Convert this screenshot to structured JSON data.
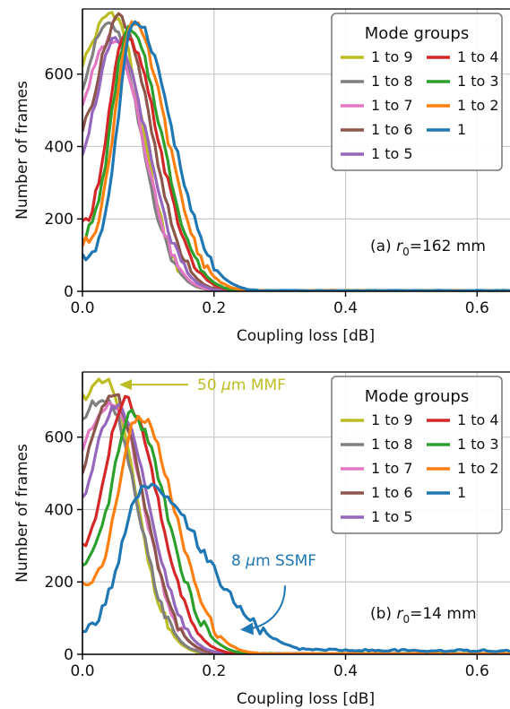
{
  "colors": {
    "1 to 9": "#bcbd22",
    "1 to 8": "#7f7f7f",
    "1 to 7": "#e377c2",
    "1 to 6": "#8c564b",
    "1 to 5": "#9467bd",
    "1 to 4": "#d62728",
    "1 to 3": "#2ca02c",
    "1 to 2": "#ff7f0e",
    "1": "#1f77b4"
  },
  "legend_order": [
    "1 to 9",
    "1 to 4",
    "1 to 8",
    "1 to 3",
    "1 to 7",
    "1 to 2",
    "1 to 6",
    "1",
    "1 to 5"
  ],
  "chart_data": [
    {
      "type": "line",
      "panel": "a",
      "xlabel": "Coupling loss [dB]",
      "ylabel": "Number of frames",
      "xlim": [
        0,
        0.65
      ],
      "ylim": [
        0,
        780
      ],
      "xticks": [
        "0.0",
        "0.2",
        "0.4",
        "0.6"
      ],
      "xtick_values": [
        0,
        0.2,
        0.4,
        0.6
      ],
      "yticks": [
        "0",
        "200",
        "400",
        "600"
      ],
      "ytick_values": [
        0,
        200,
        400,
        600
      ],
      "grid": true,
      "legend_title": "Mode groups",
      "legend_position": "top-right",
      "annotation_prefix": "(a) ",
      "annotation_symbol": "r",
      "annotation_sub": "0",
      "annotation_value": "=162 mm",
      "series": [
        {
          "name": "1 to 9",
          "peak_x": 0.045,
          "peak_y": 770,
          "y0": 630,
          "sl": 0.03,
          "sr": 0.045
        },
        {
          "name": "1 to 8",
          "peak_x": 0.04,
          "peak_y": 740,
          "y0": 570,
          "sl": 0.03,
          "sr": 0.047
        },
        {
          "name": "1 to 7",
          "peak_x": 0.045,
          "peak_y": 700,
          "y0": 520,
          "sl": 0.032,
          "sr": 0.047
        },
        {
          "name": "1 to 6",
          "peak_x": 0.055,
          "peak_y": 760,
          "y0": 450,
          "sl": 0.028,
          "sr": 0.048
        },
        {
          "name": "1 to 5",
          "peak_x": 0.05,
          "peak_y": 690,
          "y0": 390,
          "sl": 0.028,
          "sr": 0.048
        },
        {
          "name": "1 to 4",
          "peak_x": 0.065,
          "peak_y": 700,
          "y0": 180,
          "sl": 0.025,
          "sr": 0.05
        },
        {
          "name": "1 to 3",
          "peak_x": 0.07,
          "peak_y": 720,
          "y0": 150,
          "sl": 0.025,
          "sr": 0.05
        },
        {
          "name": "1 to 2",
          "peak_x": 0.075,
          "peak_y": 740,
          "y0": 130,
          "sl": 0.025,
          "sr": 0.052
        },
        {
          "name": "1",
          "peak_x": 0.08,
          "peak_y": 750,
          "y0": 90,
          "sl": 0.025,
          "sr": 0.055
        }
      ]
    },
    {
      "type": "line",
      "panel": "b",
      "xlabel": "Coupling loss [dB]",
      "ylabel": "Number of frames",
      "xlim": [
        0,
        0.65
      ],
      "ylim": [
        0,
        780
      ],
      "xticks": [
        "0.0",
        "0.2",
        "0.4",
        "0.6"
      ],
      "xtick_values": [
        0,
        0.2,
        0.4,
        0.6
      ],
      "yticks": [
        "0",
        "200",
        "400",
        "600"
      ],
      "ytick_values": [
        0,
        200,
        400,
        600
      ],
      "grid": true,
      "legend_title": "Mode groups",
      "legend_position": "top-right",
      "annotation_prefix": "(b) ",
      "annotation_symbol": "r",
      "annotation_sub": "0",
      "annotation_value": "=14 mm",
      "callout_mmf": {
        "pre": "50 ",
        "mu": "μ",
        "post": "m MMF",
        "color": "#bcbd22"
      },
      "callout_ssmf": {
        "pre": "8 ",
        "mu": "μ",
        "post": "m SSMF",
        "color": "#1f77b4"
      },
      "series": [
        {
          "name": "1 to 9",
          "peak_x": 0.035,
          "peak_y": 750,
          "y0": 710,
          "sl": 0.03,
          "sr": 0.045
        },
        {
          "name": "1 to 8",
          "peak_x": 0.035,
          "peak_y": 710,
          "y0": 650,
          "sl": 0.03,
          "sr": 0.047
        },
        {
          "name": "1 to 7",
          "peak_x": 0.045,
          "peak_y": 700,
          "y0": 570,
          "sl": 0.03,
          "sr": 0.048
        },
        {
          "name": "1 to 6",
          "peak_x": 0.045,
          "peak_y": 720,
          "y0": 500,
          "sl": 0.03,
          "sr": 0.048
        },
        {
          "name": "1 to 5",
          "peak_x": 0.05,
          "peak_y": 690,
          "y0": 430,
          "sl": 0.03,
          "sr": 0.05
        },
        {
          "name": "1 to 4",
          "peak_x": 0.065,
          "peak_y": 700,
          "y0": 290,
          "sl": 0.028,
          "sr": 0.05
        },
        {
          "name": "1 to 3",
          "peak_x": 0.075,
          "peak_y": 660,
          "y0": 240,
          "sl": 0.028,
          "sr": 0.053
        },
        {
          "name": "1 to 2",
          "peak_x": 0.085,
          "peak_y": 660,
          "y0": 190,
          "sl": 0.028,
          "sr": 0.055
        },
        {
          "name": "1",
          "peak_x": 0.095,
          "peak_y": 460,
          "y0": 60,
          "sl": 0.035,
          "sr": 0.09,
          "tail": 10
        }
      ]
    }
  ]
}
